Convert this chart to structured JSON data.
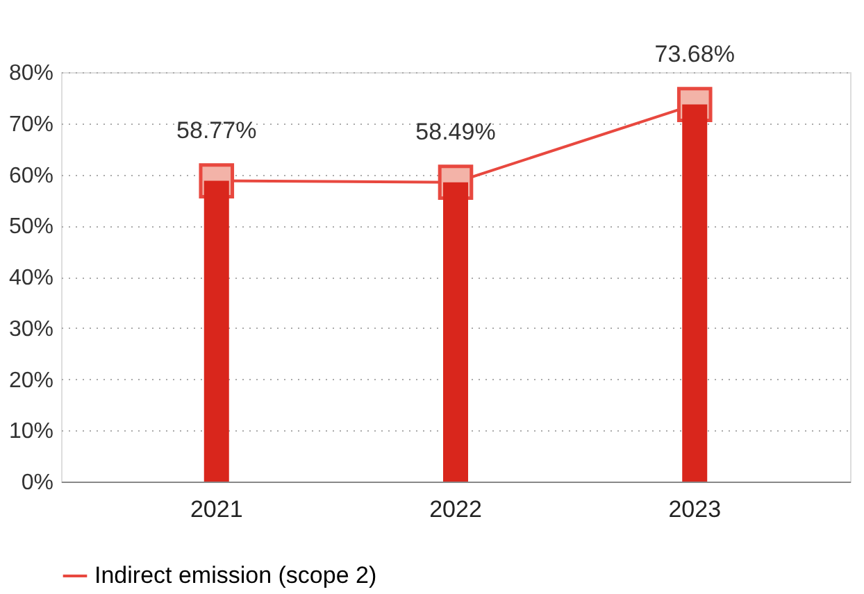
{
  "chart_data": {
    "type": "bar",
    "categories": [
      "2021",
      "2022",
      "2023"
    ],
    "series": [
      {
        "color": "#d9261c",
        "values": [
          58.77,
          58.49,
          73.68
        ]
      },
      {
        "type": "line",
        "name": "Indirect emission (scope 2)",
        "color": "#e8483f",
        "values": [
          58.77,
          58.49,
          73.68
        ],
        "value_labels": [
          "58.77%",
          "58.49%",
          "73.68%"
        ]
      }
    ],
    "ylim": [
      0,
      80
    ],
    "yticks": [
      {
        "value": 0,
        "label": "0%"
      },
      {
        "value": 10,
        "label": "10%"
      },
      {
        "value": 20,
        "label": "20%"
      },
      {
        "value": 30,
        "label": "30%"
      },
      {
        "value": 40,
        "label": "40%"
      },
      {
        "value": 50,
        "label": "50%"
      },
      {
        "value": 60,
        "label": "60%"
      },
      {
        "value": 70,
        "label": "70%"
      },
      {
        "value": 80,
        "label": "80%"
      }
    ],
    "grid": "y",
    "legend": "bottom left",
    "marker": "square",
    "line_style": "solid"
  }
}
